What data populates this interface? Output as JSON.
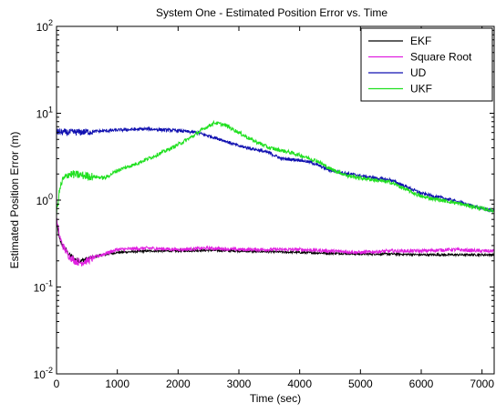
{
  "chart_data": {
    "type": "line",
    "title": "System One - Estimated Position Error vs. Time",
    "xlabel": "Time (sec)",
    "ylabel": "Estimated Position Error (m)",
    "xlim": [
      0,
      7200
    ],
    "ylim": [
      0.01,
      100
    ],
    "yscale": "log",
    "x_ticks": [
      0,
      1000,
      2000,
      3000,
      4000,
      5000,
      6000,
      7000
    ],
    "x_tick_labels": [
      "0",
      "1000",
      "2000",
      "3000",
      "4000",
      "5000",
      "6000",
      "7000"
    ],
    "y_ticks": [
      0.01,
      0.1,
      1,
      10,
      100
    ],
    "y_tick_labels": [
      {
        "base": "10",
        "exp": "-2"
      },
      {
        "base": "10",
        "exp": "-1"
      },
      {
        "base": "10",
        "exp": "0"
      },
      {
        "base": "10",
        "exp": "1"
      },
      {
        "base": "10",
        "exp": "2"
      }
    ],
    "grid": false,
    "legend_position": "top-right",
    "series": [
      {
        "name": "EKF",
        "color": "#000000",
        "x": [
          0,
          50,
          100,
          200,
          300,
          400,
          500,
          700,
          1000,
          1500,
          2000,
          2500,
          3000,
          3500,
          4000,
          4500,
          5000,
          5500,
          6000,
          6500,
          7000,
          7200
        ],
        "y": [
          0.55,
          0.35,
          0.3,
          0.24,
          0.21,
          0.2,
          0.21,
          0.23,
          0.25,
          0.26,
          0.26,
          0.265,
          0.26,
          0.255,
          0.25,
          0.245,
          0.24,
          0.24,
          0.235,
          0.235,
          0.235,
          0.235
        ]
      },
      {
        "name": "Square Root",
        "color": "#e020e0",
        "x": [
          0,
          50,
          100,
          200,
          300,
          400,
          500,
          700,
          1000,
          1500,
          2000,
          2500,
          3000,
          3500,
          4000,
          4500,
          5000,
          5500,
          6000,
          6500,
          7000,
          7200
        ],
        "y": [
          0.6,
          0.38,
          0.3,
          0.23,
          0.2,
          0.19,
          0.2,
          0.23,
          0.27,
          0.28,
          0.27,
          0.28,
          0.27,
          0.27,
          0.27,
          0.26,
          0.25,
          0.26,
          0.26,
          0.27,
          0.26,
          0.26
        ]
      },
      {
        "name": "UD",
        "color": "#1010b0",
        "x": [
          0,
          200,
          500,
          1000,
          1500,
          2000,
          2300,
          2500,
          2700,
          3000,
          3300,
          3500,
          3700,
          4000,
          4200,
          4500,
          5000,
          5500,
          6000,
          6500,
          7000,
          7200
        ],
        "y": [
          6.1,
          6.0,
          6.1,
          6.4,
          6.6,
          6.3,
          6.0,
          5.5,
          5.0,
          4.2,
          3.8,
          3.5,
          3.0,
          2.9,
          2.7,
          2.2,
          1.9,
          1.7,
          1.2,
          1.0,
          0.8,
          0.75
        ]
      },
      {
        "name": "UKF",
        "color": "#20e020",
        "x": [
          0,
          50,
          100,
          200,
          500,
          800,
          1000,
          1300,
          1600,
          1900,
          2200,
          2400,
          2600,
          2800,
          3000,
          3200,
          3500,
          3800,
          4000,
          4300,
          4500,
          4800,
          5000,
          5500,
          6000,
          6500,
          7000,
          7200
        ],
        "y": [
          0.7,
          1.3,
          1.7,
          2.0,
          1.9,
          1.8,
          2.2,
          2.6,
          3.2,
          4.0,
          5.2,
          6.5,
          7.8,
          7.2,
          6.0,
          5.0,
          4.0,
          3.6,
          3.3,
          2.8,
          2.3,
          1.9,
          1.8,
          1.6,
          1.1,
          0.95,
          0.8,
          0.75
        ]
      }
    ]
  }
}
